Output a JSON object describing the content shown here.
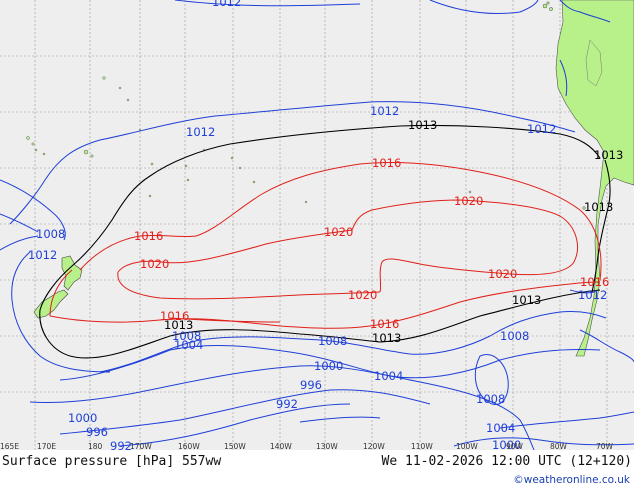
{
  "map": {
    "lon_labels": [
      "165E",
      "170E",
      "180",
      "170W",
      "160W",
      "150W",
      "140W",
      "130W",
      "120W",
      "110W",
      "100W",
      "90W",
      "80W",
      "70W"
    ],
    "contour_labels": {
      "l1012_top": "1012",
      "l1012_a": "1012",
      "l1012_b": "1012",
      "l1012_c": "1012",
      "l1012_d": "1012",
      "l1013_top": "1013",
      "l1013_right1": "1013",
      "l1013_right2": "1013",
      "l1013_bot_a": "1013",
      "l1013_bot_b": "1013",
      "l1013_bot_c": "1013",
      "l1016_a": "1016",
      "l1016_b": "1016",
      "l1016_c": "1016",
      "l1016_d": "1016",
      "l1016_e": "1016",
      "l1020_a": "1020",
      "l1020_b": "1020",
      "l1020_c": "1020",
      "l1020_d": "1020",
      "l1020_e": "1020",
      "l1008_a": "1008",
      "l1008_b": "1008",
      "l1008_c": "1008",
      "l1008_d": "1008",
      "l1008_e": "1008",
      "l1004_a": "1004",
      "l1004_b": "1004",
      "l1004_c": "1004",
      "l1000_a": "1000",
      "l1000_b": "1000",
      "l1000_c": "1000",
      "l996_a": "996",
      "l996_b": "996",
      "l992_a": "992",
      "l992_b": "992"
    },
    "colors": {
      "ocean": "#eeeeee",
      "land": "#b8f08a",
      "isobar_low": "#1f3fd8",
      "isobar_standard": "#000000",
      "isobar_high": "#e0201a",
      "grid": "#9a9a9a"
    }
  },
  "footer": {
    "caption_left": "Surface pressure [hPa] 557ww",
    "caption_right": "We 11-02-2026 12:00 UTC (12+120)",
    "credit": "©weatheronline.co.uk"
  }
}
